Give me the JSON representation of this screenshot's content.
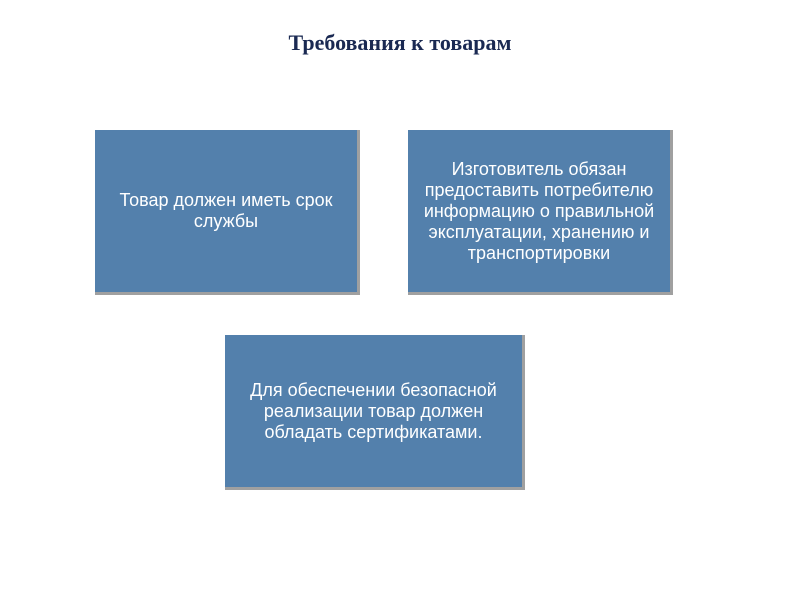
{
  "title": {
    "text": "Требования к товарам",
    "color": "#1a2952",
    "fontsize": 22
  },
  "boxes": {
    "background_color": "#5380ac",
    "text_color": "#ffffff",
    "fontsize": 18,
    "items": [
      {
        "text": "Товар должен иметь срок службы"
      },
      {
        "text": "Изготовитель обязан предоставить потребителю информацию о правильной эксплуатации, хранению и транспортировки"
      },
      {
        "text": "Для обеспечении безопасной реализации товар должен обладать сертификатами."
      }
    ]
  }
}
